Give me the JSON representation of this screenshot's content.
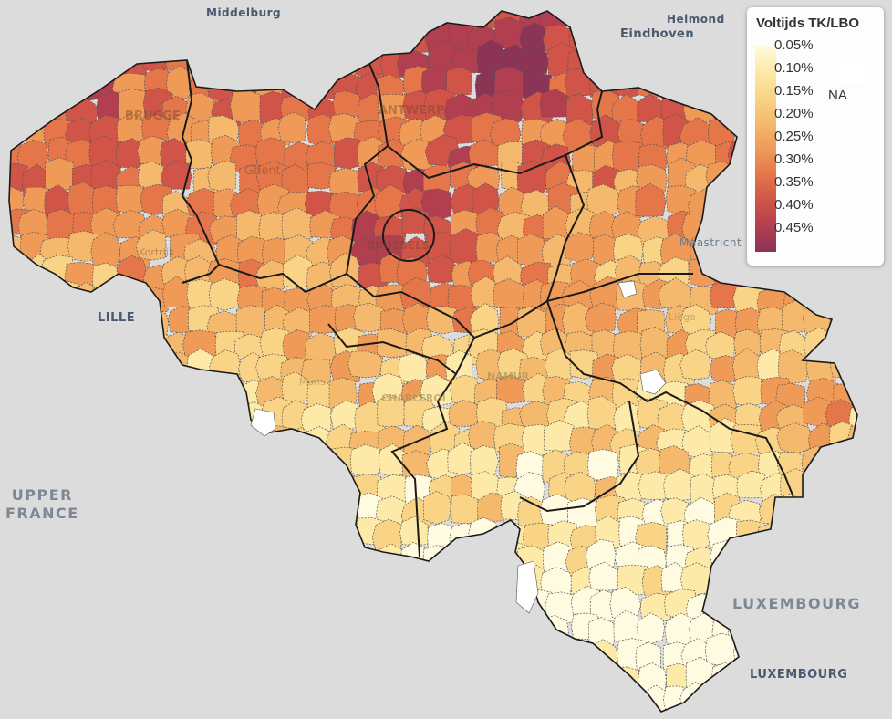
{
  "map": {
    "labels": {
      "middelburg": "Middelburg",
      "helmond": "Helmond",
      "eindhoven": "Eindhoven",
      "lille": "LILLE",
      "upper_france_1": "UPPER",
      "upper_france_2": "FRANCE",
      "luxembourg_region": "LUXEMBOURG",
      "luxembourg_city": "LUXEMBOURG",
      "maastricht": "Maastricht",
      "brugge": "BRUGGE",
      "antwerp": "ANTWERP",
      "ghent": "Ghent",
      "kortrijk": "Kortrijk",
      "brussels": "BRUSSELS",
      "liege": "Liège",
      "mons": "Mons",
      "charleroi": "CHARLEROI",
      "namur": "NAMUR"
    },
    "colors": {
      "background": "#dcdcdc",
      "border_province": "#1a1a1a",
      "border_municipality": "#555555",
      "na_fill": "#ffffff"
    }
  },
  "legend": {
    "title": "Voltijds TK/LBO",
    "ticks": [
      "0.05%",
      "0.10%",
      "0.15%",
      "0.20%",
      "0.25%",
      "0.30%",
      "0.35%",
      "0.40%",
      "0.45%"
    ],
    "na_label": "NA",
    "gradient": [
      "#fffbe0",
      "#fde9a8",
      "#f9d486",
      "#f5b96d",
      "#f09a58",
      "#e4764a",
      "#d05548",
      "#b23f50",
      "#8b3456"
    ]
  }
}
